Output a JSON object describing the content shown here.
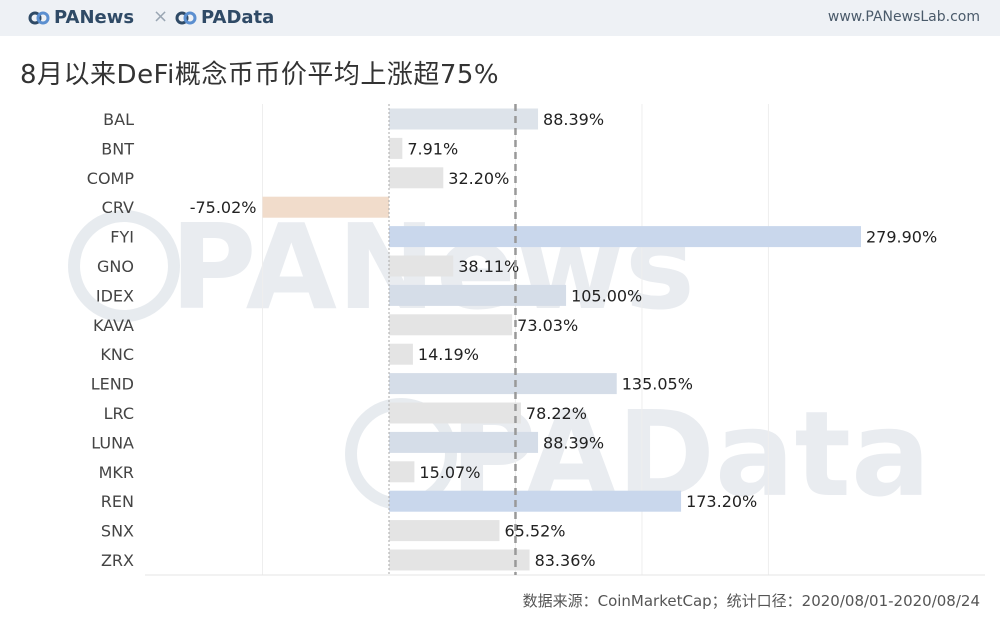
{
  "header": {
    "logo1": "PANews",
    "separator": "×",
    "logo2": "PAData",
    "site": "www.PANewsLab.com"
  },
  "title": "8月以来DeFi概念币币价平均上涨超75%",
  "footer": "数据来源：CoinMarketCap；统计口径：2020/08/01-2020/08/24",
  "watermarks": [
    "PANews",
    "PAData"
  ],
  "colors": {
    "positive_bar": "#dde3ea",
    "highlight_bar": "#c9d7ec",
    "negative_bar": "#f1dccb",
    "small_bar": "#e4e4e4",
    "average_line": "#999999"
  },
  "chart_data": {
    "type": "bar",
    "orientation": "horizontal",
    "categories": [
      "BAL",
      "BNT",
      "COMP",
      "CRV",
      "FYI",
      "GNO",
      "IDEX",
      "KAVA",
      "KNC",
      "LEND",
      "LRC",
      "LUNA",
      "MKR",
      "REN",
      "SNX",
      "ZRX"
    ],
    "values": [
      88.39,
      7.91,
      32.2,
      -75.02,
      279.9,
      38.11,
      105.0,
      73.03,
      14.19,
      135.05,
      78.22,
      88.39,
      15.07,
      173.2,
      65.52,
      83.36
    ],
    "labels": [
      "88.39%",
      "7.91%",
      "32.20%",
      "-75.02%",
      "279.90%",
      "38.11%",
      "105.00%",
      "73.03%",
      "14.19%",
      "135.05%",
      "78.22%",
      "88.39%",
      "15.07%",
      "173.20%",
      "65.52%",
      "83.36%"
    ],
    "average": 75,
    "xlim": [
      -150,
      300
    ],
    "grid": true,
    "bar_colors": [
      "#dde3ea",
      "#e4e4e4",
      "#e4e4e4",
      "#f1dccb",
      "#c9d7ec",
      "#e4e4e4",
      "#d5dde8",
      "#e4e4e4",
      "#e4e4e4",
      "#d5dde8",
      "#e4e4e4",
      "#d5dde8",
      "#e4e4e4",
      "#c9d7ec",
      "#e4e4e4",
      "#e4e4e4"
    ]
  }
}
